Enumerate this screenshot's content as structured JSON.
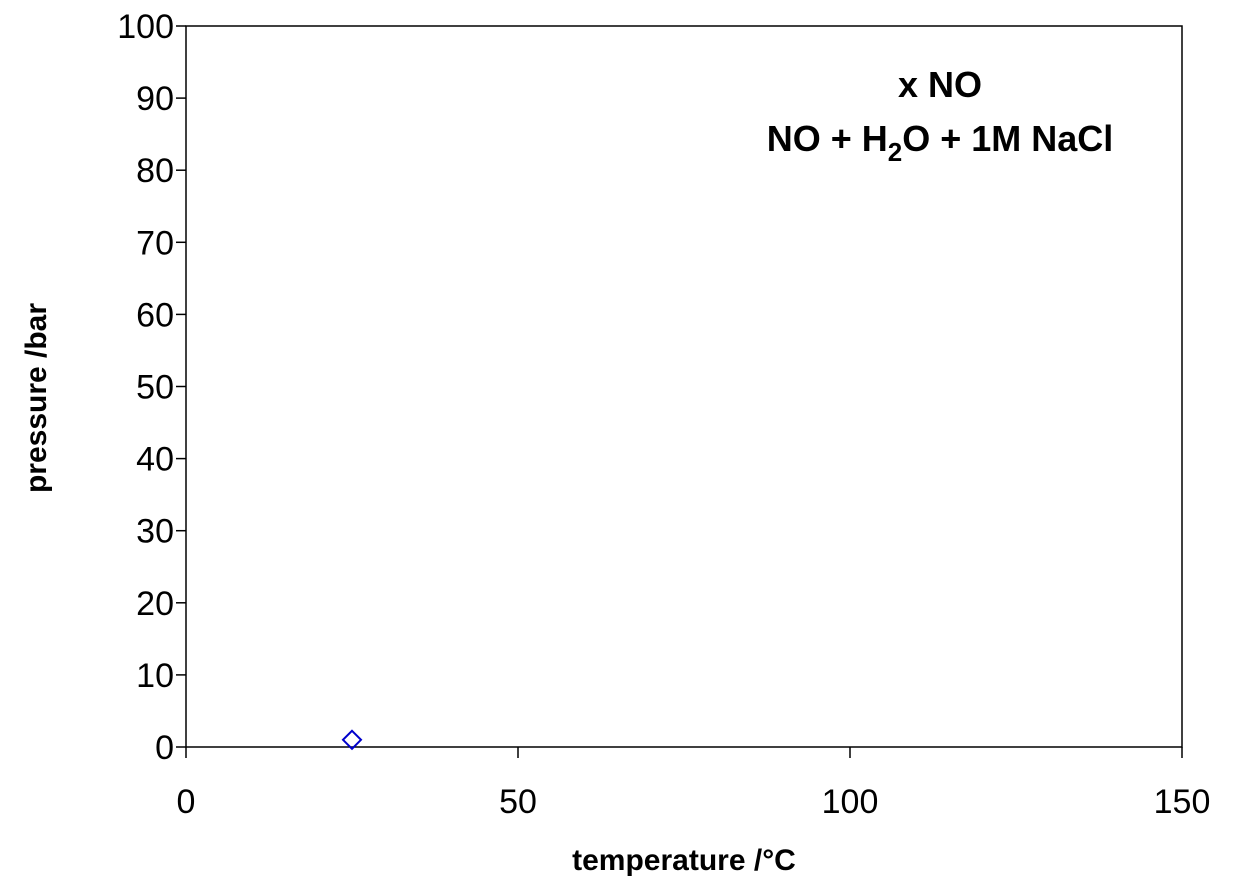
{
  "chart_data": {
    "type": "scatter",
    "xlabel": "temperature /°C",
    "ylabel": "pressure /bar",
    "xlim": [
      0,
      150
    ],
    "ylim": [
      0,
      100
    ],
    "x_ticks": [
      0,
      50,
      100,
      150
    ],
    "y_ticks": [
      0,
      10,
      20,
      30,
      40,
      50,
      60,
      70,
      80,
      90,
      100
    ],
    "grid": false,
    "annotations": {
      "line1": "x NO",
      "line2_prefix": "NO + H",
      "line2_sub": "2",
      "line2_suffix": "O + 1M NaCl"
    },
    "series": [
      {
        "marker": "diamond-open",
        "color": "#0000cc",
        "points": [
          {
            "x": 25,
            "y": 1
          }
        ]
      }
    ]
  }
}
